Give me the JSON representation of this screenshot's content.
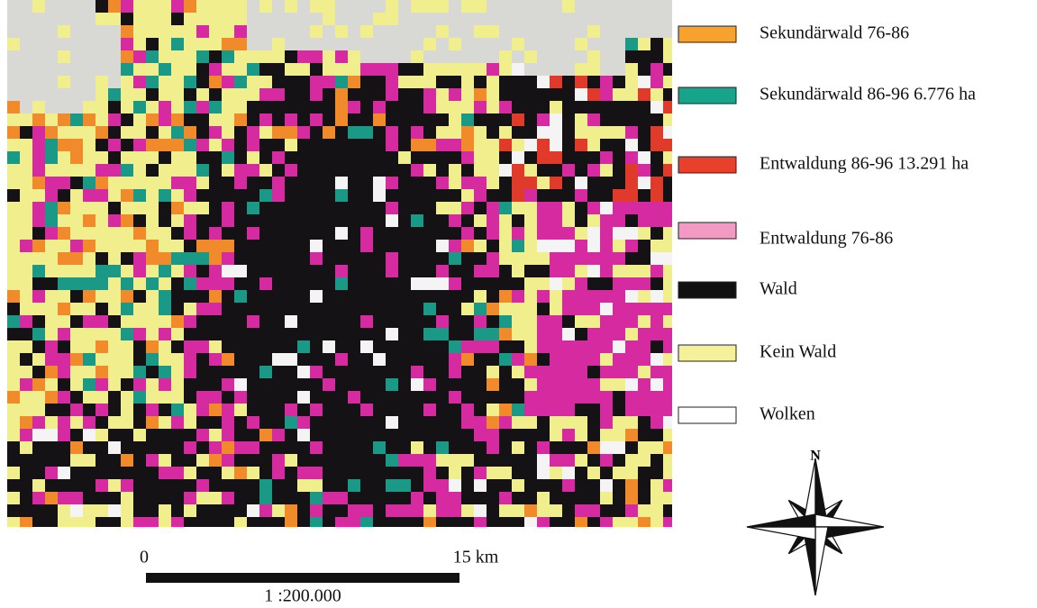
{
  "legend": {
    "items": [
      {
        "label": "Sekundärwald 76-86",
        "color": "#f7a12e"
      },
      {
        "label": "Sekundärwald 86-96 6.776 ha",
        "color": "#16a58a"
      },
      {
        "label": "Entwaldung 86-96 13.291 ha",
        "color": "#e8402a"
      },
      {
        "label": "Entwaldung 76-86",
        "color": "#f29ac4"
      },
      {
        "label": "Wald",
        "color": "#111111"
      },
      {
        "label": "Kein Wald",
        "color": "#f4f19a"
      },
      {
        "label": "Wolken",
        "color": "#ffffff"
      }
    ]
  },
  "scale_bar": {
    "start_label": "0",
    "end_label": "15 km",
    "ratio": "1 :200.000"
  },
  "compass": {
    "north": "N"
  }
}
